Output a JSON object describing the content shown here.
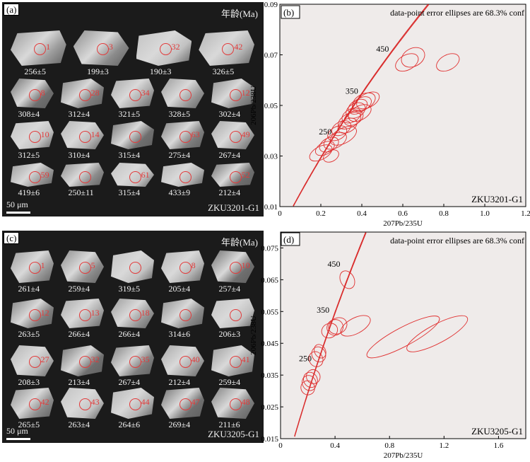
{
  "panels": {
    "a": {
      "label": "(a)",
      "title": "年龄(Ma)",
      "sample": "ZKU3201-G1",
      "scale_label": "50 μm",
      "grains": [
        {
          "spot": "1",
          "age": "256±5"
        },
        {
          "spot": "3",
          "age": "199±3"
        },
        {
          "spot": "32",
          "age": "190±3"
        },
        {
          "spot": "42",
          "age": "326±5"
        },
        {
          "spot": "8",
          "age": "308±4"
        },
        {
          "spot": "28",
          "age": "312±4"
        },
        {
          "spot": "34",
          "age": "321±5"
        },
        {
          "spot": "",
          "age": "328±5"
        },
        {
          "spot": "12",
          "age": "302±4"
        },
        {
          "spot": "10",
          "age": "312±5"
        },
        {
          "spot": "14",
          "age": "310±4"
        },
        {
          "spot": "",
          "age": "315±4"
        },
        {
          "spot": "63",
          "age": "275±4"
        },
        {
          "spot": "49",
          "age": "267±4"
        },
        {
          "spot": "59",
          "age": "419±6"
        },
        {
          "spot": "",
          "age": "250±11"
        },
        {
          "spot": "61",
          "age": "315±4"
        },
        {
          "spot": "",
          "age": "433±9"
        },
        {
          "spot": "52",
          "age": "212±4"
        }
      ]
    },
    "b": {
      "label": "(b)",
      "note": "data-point error ellipses are 68.3% conf",
      "sample": "ZKU3201-G1"
    },
    "c": {
      "label": "(c)",
      "title": "年龄(Ma)",
      "sample": "ZKU3205-G1",
      "scale_label": "50 μm",
      "grains": [
        {
          "spot": "1",
          "age": "261±4"
        },
        {
          "spot": "5",
          "age": "259±4"
        },
        {
          "spot": "",
          "age": "319±5"
        },
        {
          "spot": "8",
          "age": "205±4"
        },
        {
          "spot": "10",
          "age": "257±4"
        },
        {
          "spot": "12",
          "age": "263±5"
        },
        {
          "spot": "13",
          "age": "266±4"
        },
        {
          "spot": "18",
          "age": "266±4"
        },
        {
          "spot": "",
          "age": "314±6"
        },
        {
          "spot": "",
          "age": "206±3"
        },
        {
          "spot": "27",
          "age": "208±3"
        },
        {
          "spot": "32",
          "age": "213±4"
        },
        {
          "spot": "35",
          "age": "267±4"
        },
        {
          "spot": "40",
          "age": "212±4"
        },
        {
          "spot": "41",
          "age": "259±4"
        },
        {
          "spot": "42",
          "age": "265±5"
        },
        {
          "spot": "43",
          "age": "263±4"
        },
        {
          "spot": "44",
          "age": "264±6"
        },
        {
          "spot": "47",
          "age": "269±4"
        },
        {
          "spot": "48",
          "age": "211±6"
        }
      ]
    },
    "d": {
      "label": "(d)",
      "note": "data-point error ellipses are 68.3% conf",
      "sample": "ZKU3205-G1"
    }
  },
  "chart_data": [
    {
      "type": "scatter",
      "title": "",
      "xlabel": "207Pb/235U",
      "ylabel": "206Pb/238U",
      "xlim": [
        0,
        1.2
      ],
      "ylim": [
        0.01,
        0.09
      ],
      "xticks": [
        "0",
        "0.2",
        "0.4",
        "0.6",
        "0.8",
        "1.0",
        "1.2"
      ],
      "yticks": [
        "0.01",
        "0.03",
        "0.05",
        "0.07",
        "0.09"
      ],
      "concordia_labels": [
        {
          "text": "250",
          "x": 0.28,
          "y": 0.0396
        },
        {
          "text": "350",
          "x": 0.41,
          "y": 0.0558
        },
        {
          "text": "450",
          "x": 0.56,
          "y": 0.0724
        }
      ],
      "ellipses": [
        {
          "x": 0.2,
          "y": 0.0312,
          "rx": 0.06,
          "ry": 0.002
        },
        {
          "x": 0.22,
          "y": 0.033,
          "rx": 0.05,
          "ry": 0.0018
        },
        {
          "x": 0.24,
          "y": 0.0345,
          "rx": 0.05,
          "ry": 0.002
        },
        {
          "x": 0.25,
          "y": 0.03,
          "rx": 0.04,
          "ry": 0.0016
        },
        {
          "x": 0.27,
          "y": 0.036,
          "rx": 0.06,
          "ry": 0.0022
        },
        {
          "x": 0.28,
          "y": 0.039,
          "rx": 0.05,
          "ry": 0.002
        },
        {
          "x": 0.3,
          "y": 0.041,
          "rx": 0.05,
          "ry": 0.002
        },
        {
          "x": 0.31,
          "y": 0.038,
          "rx": 0.07,
          "ry": 0.0024
        },
        {
          "x": 0.33,
          "y": 0.042,
          "rx": 0.05,
          "ry": 0.002
        },
        {
          "x": 0.34,
          "y": 0.044,
          "rx": 0.06,
          "ry": 0.0022
        },
        {
          "x": 0.35,
          "y": 0.046,
          "rx": 0.05,
          "ry": 0.002
        },
        {
          "x": 0.37,
          "y": 0.048,
          "rx": 0.05,
          "ry": 0.0022
        },
        {
          "x": 0.38,
          "y": 0.0495,
          "rx": 0.05,
          "ry": 0.002
        },
        {
          "x": 0.4,
          "y": 0.0505,
          "rx": 0.05,
          "ry": 0.002
        },
        {
          "x": 0.41,
          "y": 0.0515,
          "rx": 0.06,
          "ry": 0.0024
        },
        {
          "x": 0.39,
          "y": 0.047,
          "rx": 0.06,
          "ry": 0.0022
        },
        {
          "x": 0.36,
          "y": 0.045,
          "rx": 0.05,
          "ry": 0.002
        },
        {
          "x": 0.43,
          "y": 0.052,
          "rx": 0.06,
          "ry": 0.0022
        },
        {
          "x": 0.62,
          "y": 0.067,
          "rx": 0.06,
          "ry": 0.0024
        },
        {
          "x": 0.65,
          "y": 0.069,
          "rx": 0.06,
          "ry": 0.003
        },
        {
          "x": 0.82,
          "y": 0.067,
          "rx": 0.06,
          "ry": 0.0024
        }
      ]
    },
    {
      "type": "scatter",
      "title": "",
      "xlabel": "207Pb/235U",
      "ylabel": "206Pb/238U",
      "xlim": [
        0,
        1.8
      ],
      "ylim": [
        0.015,
        0.08
      ],
      "xticks": [
        "0",
        "0.4",
        "0.8",
        "1.2",
        "1.6"
      ],
      "yticks": [
        "0.015",
        "0.025",
        "0.035",
        "0.045",
        "0.055",
        "0.065",
        "0.075"
      ],
      "concordia_labels": [
        {
          "text": "250",
          "x": 0.27,
          "y": 0.0403
        },
        {
          "text": "350",
          "x": 0.4,
          "y": 0.0555
        },
        {
          "text": "450",
          "x": 0.48,
          "y": 0.07
        }
      ],
      "ellipses": [
        {
          "x": 0.2,
          "y": 0.031,
          "rx": 0.05,
          "ry": 0.0018
        },
        {
          "x": 0.21,
          "y": 0.0325,
          "rx": 0.05,
          "ry": 0.002
        },
        {
          "x": 0.22,
          "y": 0.0335,
          "rx": 0.05,
          "ry": 0.002
        },
        {
          "x": 0.24,
          "y": 0.0345,
          "rx": 0.05,
          "ry": 0.0018
        },
        {
          "x": 0.26,
          "y": 0.04,
          "rx": 0.05,
          "ry": 0.002
        },
        {
          "x": 0.28,
          "y": 0.0415,
          "rx": 0.05,
          "ry": 0.002
        },
        {
          "x": 0.29,
          "y": 0.0425,
          "rx": 0.04,
          "ry": 0.0018
        },
        {
          "x": 0.36,
          "y": 0.049,
          "rx": 0.06,
          "ry": 0.0018
        },
        {
          "x": 0.4,
          "y": 0.05,
          "rx": 0.06,
          "ry": 0.002
        },
        {
          "x": 0.42,
          "y": 0.0505,
          "rx": 0.07,
          "ry": 0.002
        },
        {
          "x": 0.55,
          "y": 0.0505,
          "rx": 0.12,
          "ry": 0.002
        },
        {
          "x": 0.49,
          "y": 0.065,
          "rx": 0.05,
          "ry": 0.0025
        },
        {
          "x": 0.9,
          "y": 0.047,
          "rx": 0.3,
          "ry": 0.0025
        },
        {
          "x": 1.15,
          "y": 0.048,
          "rx": 0.25,
          "ry": 0.0025
        }
      ]
    }
  ]
}
